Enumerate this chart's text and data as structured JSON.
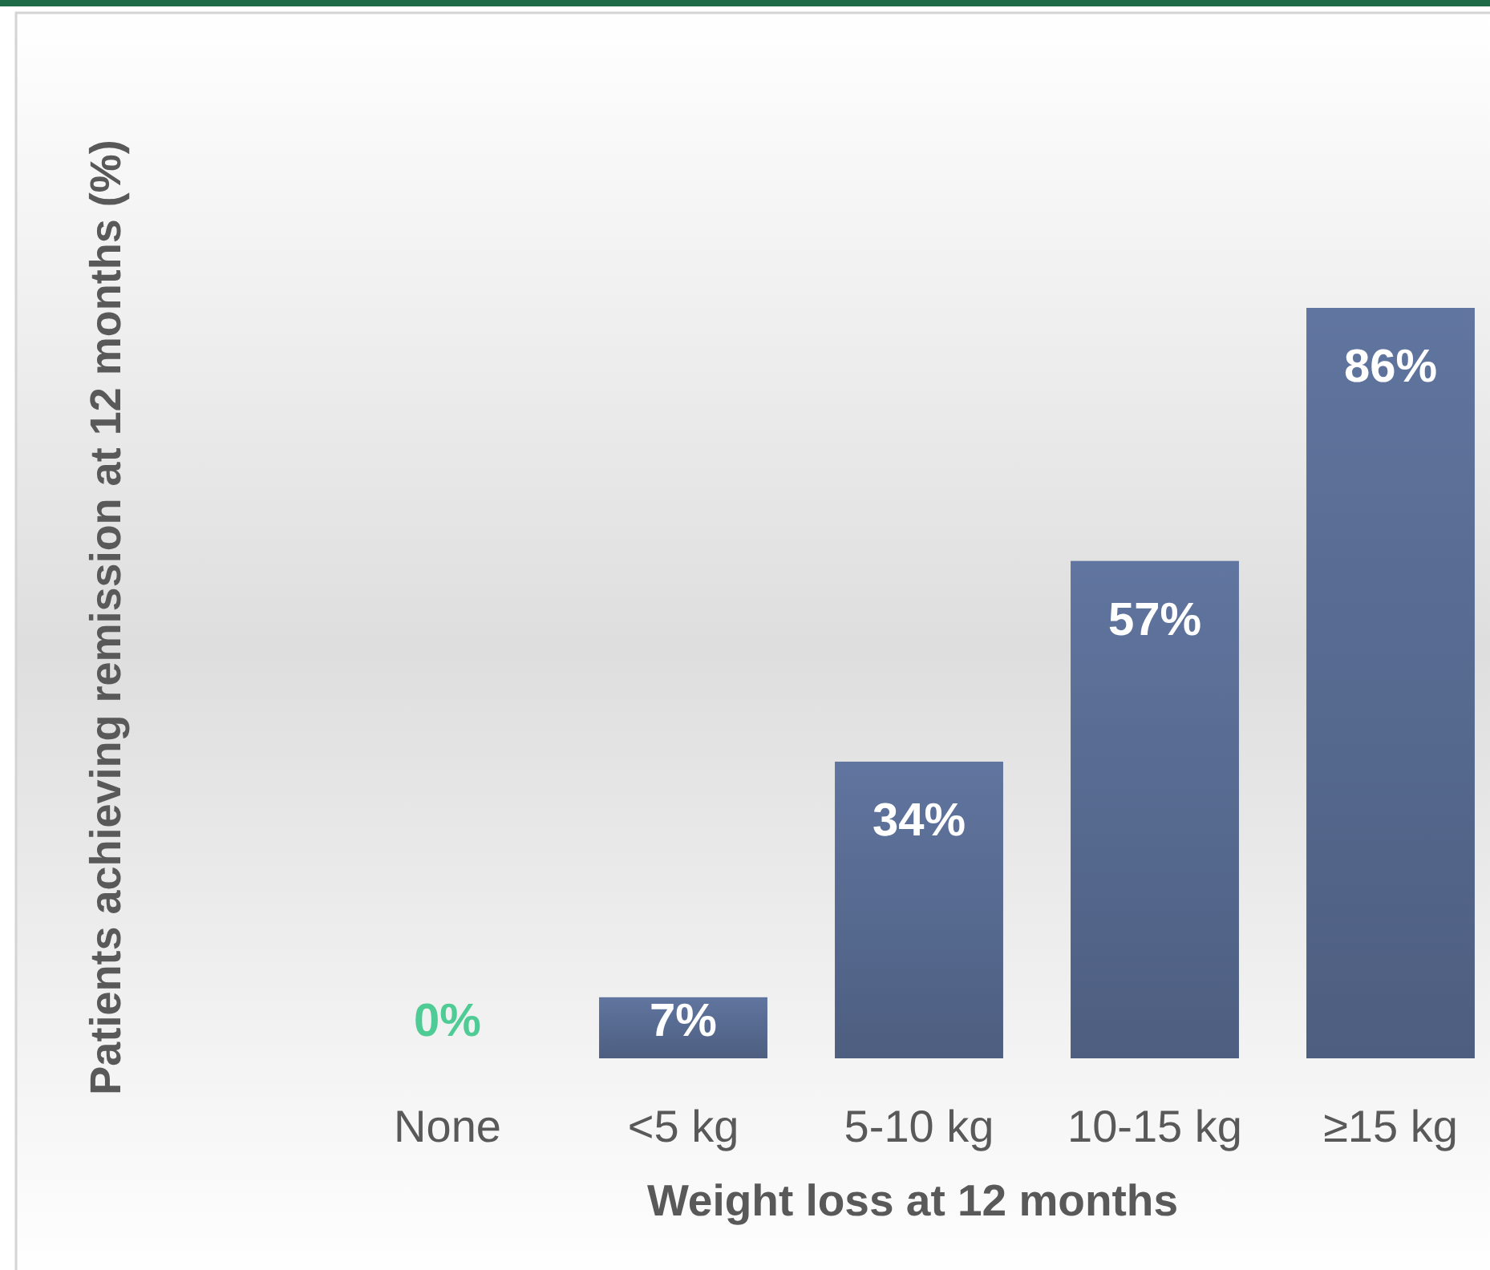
{
  "chart_data": {
    "type": "bar",
    "xlabel": "Weight loss at 12 months",
    "ylabel": "Patients achieving remission at 12 months (%)",
    "categories": [
      "None",
      "<5 kg",
      "5-10 kg",
      "10-15 kg",
      "≥15 kg"
    ],
    "values": [
      0,
      7,
      34,
      57,
      86
    ],
    "colors": [
      "#4fcb95",
      "#56698f",
      "#56698f",
      "#56698f",
      "#56698f"
    ],
    "value_labels": [
      "0%",
      "7%",
      "34%",
      "57%",
      "86%"
    ]
  }
}
